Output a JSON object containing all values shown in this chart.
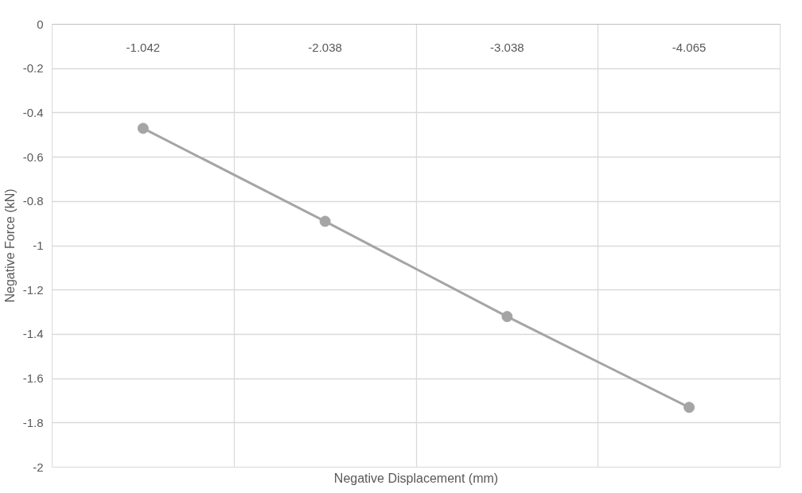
{
  "chart_data": {
    "type": "line",
    "xlabel": "Negative Displacement (mm)",
    "ylabel": "Negative Force (kN)",
    "categories": [
      "-1.042",
      "-2.038",
      "-3.038",
      "-4.065"
    ],
    "series": [
      {
        "color": "#a5a5a5",
        "values": [
          -0.47,
          -0.89,
          -1.32,
          -1.73
        ]
      }
    ],
    "ylim": [
      -2,
      0
    ],
    "yticks": [
      0,
      -0.2,
      -0.4,
      -0.6,
      -0.8,
      -1,
      -1.2,
      -1.4,
      -1.6,
      -1.8,
      -2
    ],
    "grid": true,
    "marker": "circle",
    "line_style": "solid"
  }
}
